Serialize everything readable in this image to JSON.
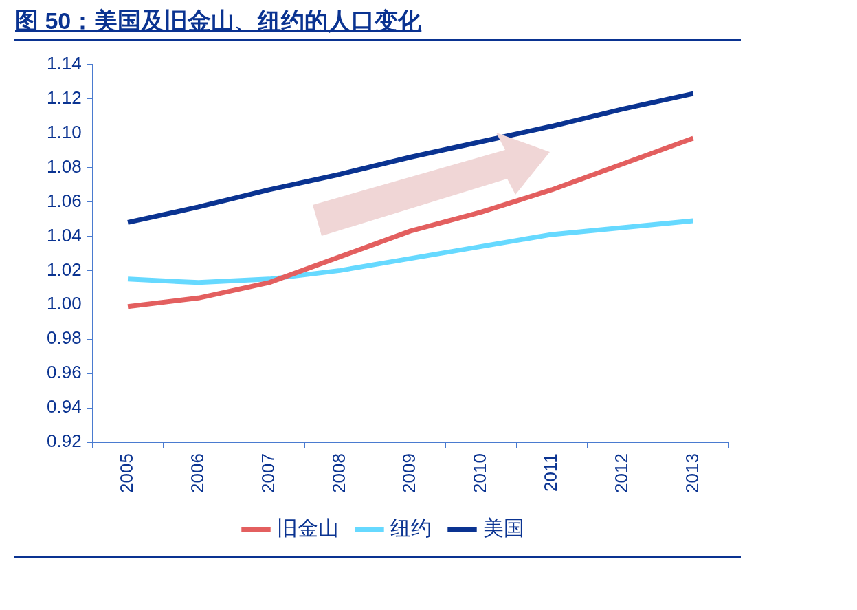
{
  "chart_data": {
    "type": "line",
    "title": "图 50：美国及旧金山、纽约的人口变化",
    "categories": [
      "2005",
      "2006",
      "2007",
      "2008",
      "2009",
      "2010",
      "2011",
      "2012",
      "2013"
    ],
    "series": [
      {
        "name": "旧金山",
        "color": "#e35f5f",
        "values": [
          0.999,
          1.004,
          1.013,
          1.028,
          1.043,
          1.054,
          1.067,
          1.082,
          1.097
        ]
      },
      {
        "name": "纽约",
        "color": "#66d9ff",
        "values": [
          1.015,
          1.013,
          1.015,
          1.02,
          1.027,
          1.034,
          1.041,
          1.045,
          1.049
        ]
      },
      {
        "name": "美国",
        "color": "#0a3391",
        "values": [
          1.048,
          1.057,
          1.067,
          1.076,
          1.086,
          1.095,
          1.104,
          1.114,
          1.123
        ]
      }
    ],
    "ylim": [
      0.92,
      1.14
    ],
    "yticks": [
      {
        "value": 0.92,
        "label": "0.92"
      },
      {
        "value": 0.94,
        "label": "0.94"
      },
      {
        "value": 0.96,
        "label": "0.96"
      },
      {
        "value": 0.98,
        "label": "0.98"
      },
      {
        "value": 1.0,
        "label": "1.00"
      },
      {
        "value": 1.02,
        "label": "1.02"
      },
      {
        "value": 1.04,
        "label": "1.04"
      },
      {
        "value": 1.06,
        "label": "1.06"
      },
      {
        "value": 1.08,
        "label": "1.08"
      },
      {
        "value": 1.1,
        "label": "1.10"
      },
      {
        "value": 1.12,
        "label": "1.12"
      },
      {
        "value": 1.14,
        "label": "1.14"
      }
    ],
    "legend": "bottom",
    "grid": false,
    "marker": "none",
    "line_style": "solid"
  }
}
